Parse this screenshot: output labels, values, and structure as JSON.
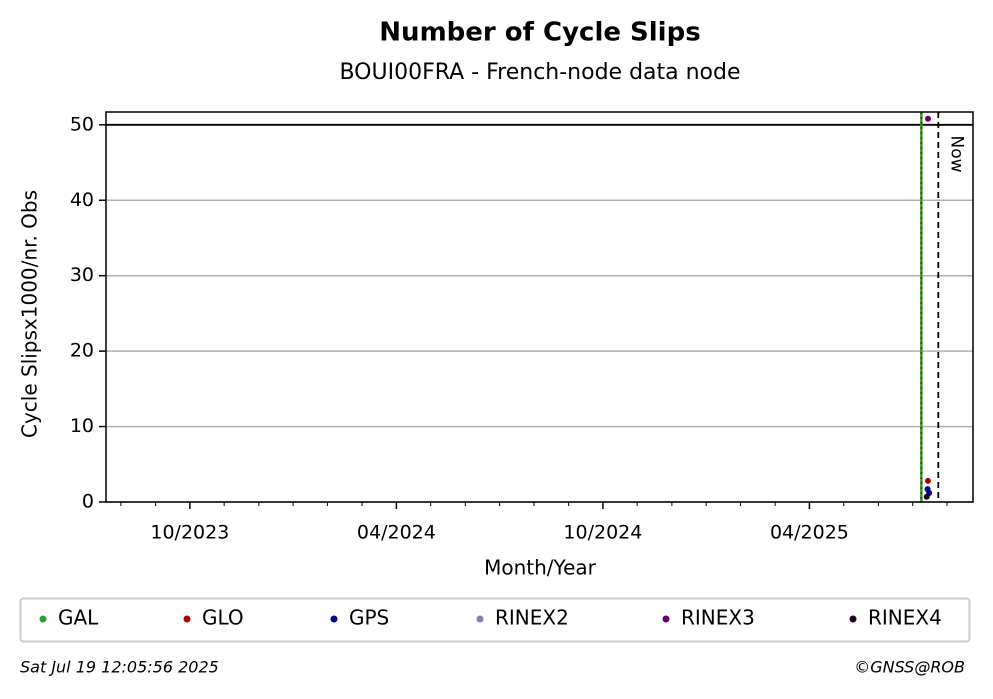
{
  "chart_data": {
    "type": "scatter",
    "title": "Number of Cycle Slips",
    "subtitle": "BOUI00FRA - French-node data node",
    "x_label": "Month/Year",
    "y_label": "Cycle Slipsx1000/nr. Obs",
    "xlim": [
      2023.547,
      2025.646
    ],
    "ylim": [
      0,
      51.7
    ],
    "xticks": [
      {
        "value": 2023.75,
        "label": "10/2023"
      },
      {
        "value": 2024.25,
        "label": "04/2024"
      },
      {
        "value": 2024.75,
        "label": "10/2024"
      },
      {
        "value": 2025.25,
        "label": "04/2025"
      }
    ],
    "xminorticks": [
      2023.583,
      2023.667,
      2023.833,
      2023.917,
      2024.0,
      2024.083,
      2024.167,
      2024.333,
      2024.417,
      2024.5,
      2024.583,
      2024.667,
      2024.833,
      2024.917,
      2025.0,
      2025.083,
      2025.167,
      2025.333,
      2025.417,
      2025.5,
      2025.583
    ],
    "yticks": [
      0,
      10,
      20,
      30,
      40,
      50
    ],
    "grid": true,
    "hline": 50,
    "vline": 2025.521,
    "now": {
      "x": 2025.562,
      "label": "Now"
    },
    "series": [
      {
        "name": "GAL",
        "color": "#2ca02c",
        "x": [],
        "values": []
      },
      {
        "name": "GLO",
        "color": "#b00000",
        "x": [
          2025.537
        ],
        "values": [
          2.8
        ]
      },
      {
        "name": "GPS",
        "color": "#00008b",
        "x": [
          2025.536,
          2025.54
        ],
        "values": [
          1.7,
          1.2
        ]
      },
      {
        "name": "RINEX2",
        "color": "#8080c0",
        "x": [],
        "values": []
      },
      {
        "name": "RINEX3",
        "color": "#660066",
        "x": [
          2025.537
        ],
        "values": [
          50.8
        ]
      },
      {
        "name": "RINEX4",
        "color": "#200020",
        "x": [
          2025.534
        ],
        "values": [
          0.7
        ]
      }
    ],
    "footer_left": "Sat Jul 19 12:05:56 2025",
    "footer_right": "©GNSS@ROB"
  }
}
